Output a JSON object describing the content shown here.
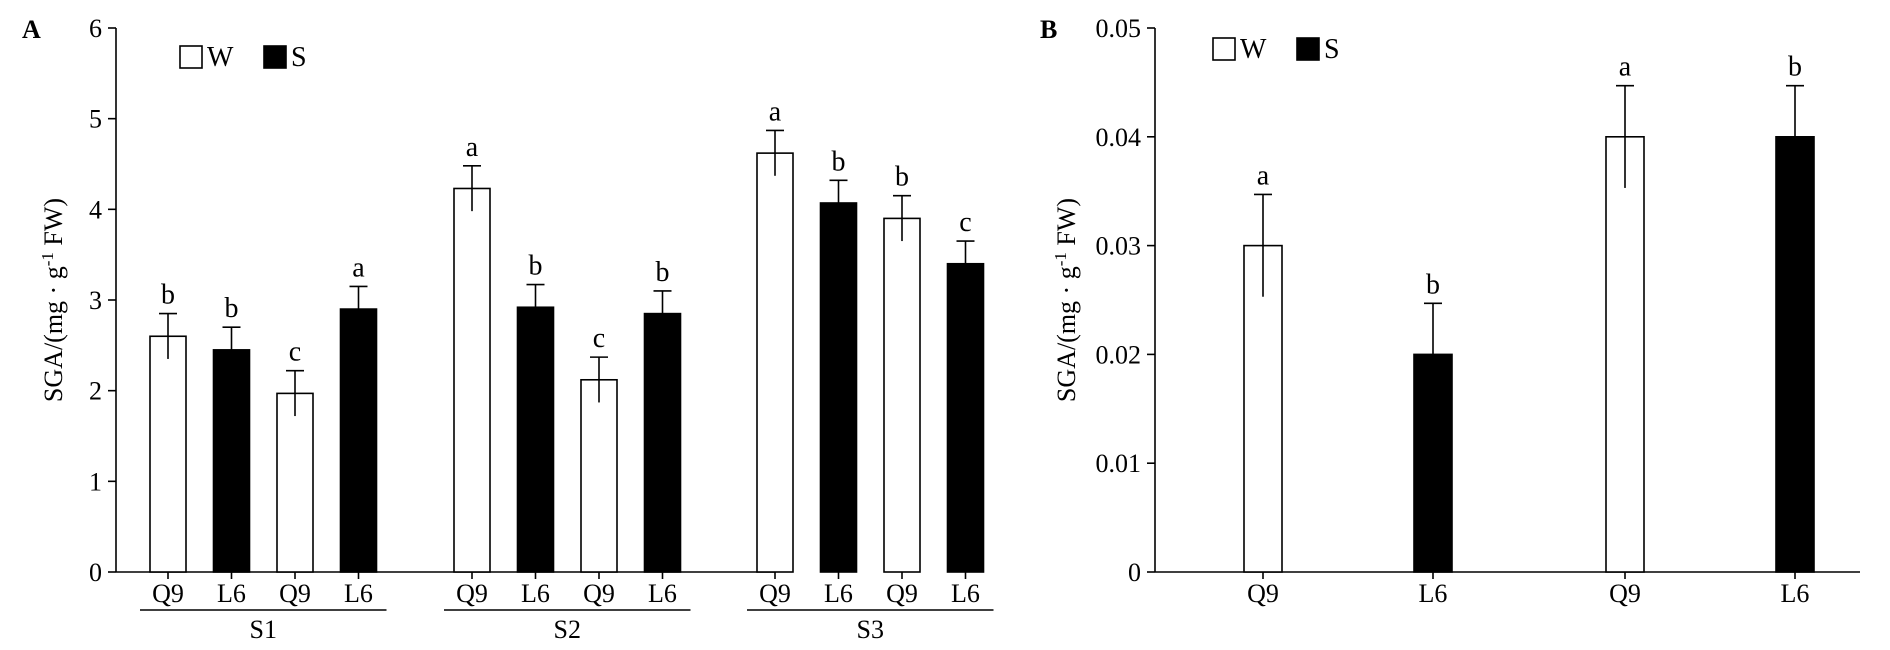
{
  "chart_data": [
    {
      "type": "bar",
      "panel": "A",
      "ylabel": "SGA/(mg · g-1 FW)",
      "ylim": [
        0,
        6
      ],
      "yticks": [
        "0",
        "1",
        "2",
        "3",
        "4",
        "5",
        "6"
      ],
      "legend": [
        {
          "name": "W",
          "color": "#ffffff"
        },
        {
          "name": "S",
          "color": "#000000"
        }
      ],
      "legend_position": "top-left",
      "grid": false,
      "groups": [
        {
          "name": "S1",
          "bars": [
            {
              "category": "Q9",
              "series": "W",
              "value": 2.6,
              "error": 0.25,
              "letter": "b"
            },
            {
              "category": "L6",
              "series": "S",
              "value": 2.45,
              "error": 0.25,
              "letter": "b"
            },
            {
              "category": "Q9",
              "series": "W",
              "value": 1.97,
              "error": 0.25,
              "letter": "c"
            },
            {
              "category": "L6",
              "series": "S",
              "value": 2.9,
              "error": 0.25,
              "letter": "a"
            }
          ]
        },
        {
          "name": "S2",
          "bars": [
            {
              "category": "Q9",
              "series": "W",
              "value": 4.23,
              "error": 0.25,
              "letter": "a"
            },
            {
              "category": "L6",
              "series": "S",
              "value": 2.92,
              "error": 0.25,
              "letter": "b"
            },
            {
              "category": "Q9",
              "series": "W",
              "value": 2.12,
              "error": 0.25,
              "letter": "c"
            },
            {
              "category": "L6",
              "series": "S",
              "value": 2.85,
              "error": 0.25,
              "letter": "b"
            }
          ]
        },
        {
          "name": "S3",
          "bars": [
            {
              "category": "Q9",
              "series": "W",
              "value": 4.62,
              "error": 0.25,
              "letter": "a"
            },
            {
              "category": "L6",
              "series": "S",
              "value": 4.07,
              "error": 0.25,
              "letter": "b"
            },
            {
              "category": "Q9",
              "series": "W",
              "value": 3.9,
              "error": 0.25,
              "letter": "b"
            },
            {
              "category": "L6",
              "series": "S",
              "value": 3.4,
              "error": 0.25,
              "letter": "c"
            }
          ]
        }
      ]
    },
    {
      "type": "bar",
      "panel": "B",
      "ylabel": "SGA/(mg · g-1 FW)",
      "ylim": [
        0,
        0.05
      ],
      "yticks": [
        "0",
        "0.01",
        "0.02",
        "0.03",
        "0.04",
        "0.05"
      ],
      "legend": [
        {
          "name": "W",
          "color": "#ffffff"
        },
        {
          "name": "S",
          "color": "#000000"
        }
      ],
      "legend_position": "top-left",
      "grid": false,
      "bars": [
        {
          "category": "Q9",
          "series": "W",
          "value": 0.03,
          "error": 0.0047,
          "letter": "a"
        },
        {
          "category": "L6",
          "series": "S",
          "value": 0.02,
          "error": 0.0047,
          "letter": "b"
        },
        {
          "category": "Q9",
          "series": "W",
          "value": 0.04,
          "error": 0.0047,
          "letter": "a"
        },
        {
          "category": "L6",
          "series": "S",
          "value": 0.04,
          "error": 0.0047,
          "letter": "b"
        }
      ]
    }
  ]
}
